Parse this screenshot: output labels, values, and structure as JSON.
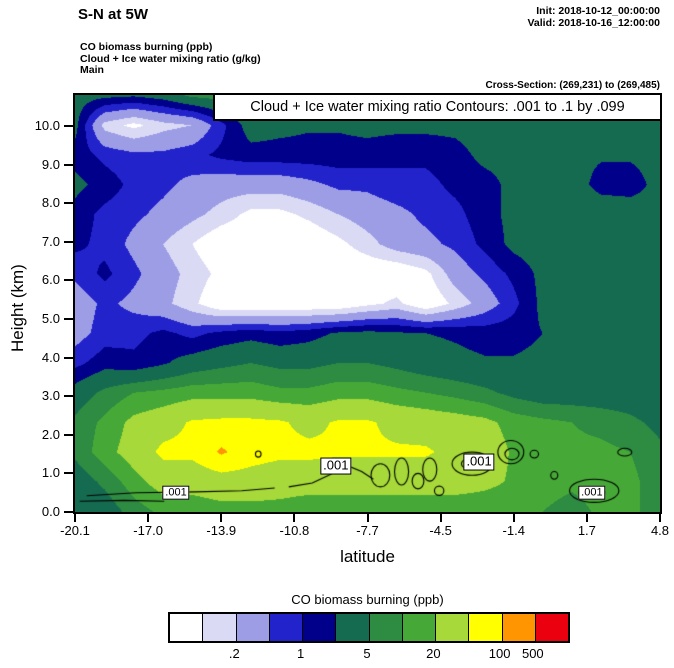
{
  "header": {
    "title": "S-N at 5W",
    "init_label": "Init: 2018-10-12_00:00:00",
    "valid_label": "Valid: 2018-10-16_12:00:00",
    "field_lines": [
      "CO biomass burning   (ppb)",
      "Cloud + Ice water mixing ratio   (g/kg)",
      "Main"
    ],
    "cross_section": "Cross-Section: (269,231) to (269,485)"
  },
  "chart_data": {
    "type": "filled_contour",
    "title": "Cloud + Ice water mixing ratio Contours: .001 to .1 by .099",
    "xlabel": "latitude",
    "ylabel": "Height (km)",
    "xlim": [
      -20.1,
      4.8
    ],
    "ylim": [
      0,
      10.8
    ],
    "x_ticks": [
      "-20.1",
      "-17.0",
      "-13.9",
      "-10.8",
      "-7.7",
      "-4.5",
      "-1.4",
      "1.7",
      "4.8"
    ],
    "y_ticks": [
      "0.0",
      "1.0",
      "2.0",
      "3.0",
      "4.0",
      "5.0",
      "6.0",
      "7.0",
      "8.0",
      "9.0",
      "10.0"
    ],
    "fill_field": {
      "name": "CO biomass burning (ppb)",
      "units": "ppb",
      "levels": [
        0.1,
        0.2,
        0.5,
        1,
        2,
        5,
        10,
        20,
        50,
        100,
        500
      ],
      "colors": [
        "#ffffff",
        "#dadaf5",
        "#9d9de6",
        "#2323cc",
        "#00008b",
        "#156b50",
        "#2e8b42",
        "#46a937",
        "#a6d939",
        "#ffff00",
        "#ff9500",
        "#eb0010"
      ],
      "lats": [
        -20.1,
        -18.9,
        -17.6,
        -16.4,
        -15.1,
        -13.9,
        -12.6,
        -11.4,
        -10.1,
        -8.9,
        -7.7,
        -6.4,
        -5.2,
        -3.9,
        -2.7,
        -1.4,
        -0.2,
        1.0,
        2.3,
        3.5,
        4.8
      ],
      "heights": [
        0,
        0.77,
        1.54,
        2.31,
        3.09,
        3.86,
        4.63,
        5.4,
        6.17,
        6.94,
        7.71,
        8.49,
        9.26,
        10.03,
        10.8
      ],
      "values": [
        [
          3,
          3,
          7,
          12,
          12,
          15,
          15,
          15,
          12,
          12,
          12,
          12,
          12,
          12,
          12,
          12,
          10,
          7,
          12,
          12,
          7
        ],
        [
          3,
          6,
          15,
          30,
          30,
          35,
          35,
          30,
          30,
          30,
          30,
          30,
          30,
          30,
          25,
          18,
          15,
          12,
          15,
          12,
          7
        ],
        [
          6,
          15,
          30,
          60,
          60,
          110,
          70,
          60,
          60,
          55,
          55,
          55,
          55,
          40,
          35,
          18,
          15,
          12,
          12,
          10,
          6
        ],
        [
          6,
          12,
          25,
          35,
          55,
          60,
          60,
          55,
          40,
          55,
          55,
          40,
          35,
          30,
          25,
          15,
          12,
          10,
          8,
          6,
          4
        ],
        [
          3,
          6,
          10,
          12,
          15,
          15,
          15,
          12,
          12,
          15,
          15,
          12,
          10,
          8,
          6,
          4,
          3,
          3,
          3,
          3,
          2.5
        ],
        [
          0.8,
          1.5,
          1.2,
          1.8,
          3,
          4,
          5,
          4,
          4,
          5,
          5,
          4,
          3,
          2.5,
          2.2,
          2.2,
          2.5,
          3,
          3,
          2.5,
          2.2
        ],
        [
          0.35,
          0.7,
          0.8,
          1.2,
          0.8,
          1.2,
          1.5,
          1.2,
          1.5,
          2.2,
          2.5,
          2.2,
          2,
          1.8,
          1.5,
          1.5,
          2,
          2.5,
          2.5,
          2.2,
          2
        ],
        [
          0.3,
          0.6,
          0.4,
          0.25,
          0.12,
          0.05,
          0.05,
          0.05,
          0.05,
          0.05,
          0.08,
          0.12,
          0.05,
          0.12,
          0.3,
          0.8,
          2.5,
          3,
          3,
          2.5,
          2.2
        ],
        [
          0.6,
          1.2,
          0.6,
          0.3,
          0.15,
          0.08,
          0.05,
          0.05,
          0.05,
          0.05,
          0.05,
          0.05,
          0.08,
          0.3,
          0.6,
          1.2,
          2.5,
          3,
          3,
          2.5,
          2.2
        ],
        [
          1.2,
          0.8,
          0.4,
          0.2,
          0.1,
          0.05,
          0.05,
          0.05,
          0.05,
          0.08,
          0.15,
          0.3,
          0.4,
          0.6,
          1.2,
          2.5,
          3,
          3.5,
          3,
          2.5,
          2.5
        ],
        [
          1.5,
          0.8,
          0.6,
          0.4,
          0.25,
          0.15,
          0.08,
          0.08,
          0.12,
          0.2,
          0.3,
          0.4,
          0.6,
          0.8,
          1.5,
          2.5,
          3,
          4,
          3.5,
          3,
          2.5
        ],
        [
          2.5,
          1.5,
          0.8,
          0.6,
          0.4,
          0.3,
          0.3,
          0.3,
          0.4,
          0.6,
          0.6,
          0.8,
          0.8,
          1.2,
          1.5,
          2.5,
          3.5,
          3,
          1.5,
          1.5,
          2.5
        ],
        [
          1.5,
          0.8,
          0.6,
          0.6,
          0.8,
          1.2,
          1.5,
          1.5,
          1.5,
          1.5,
          1.5,
          1.2,
          1.2,
          1.5,
          2.5,
          2.5,
          2.5,
          2.5,
          2.2,
          2.2,
          2.5
        ],
        [
          2.5,
          0.15,
          0.08,
          0.15,
          0.2,
          0.8,
          3,
          2.5,
          2.2,
          2.2,
          2.5,
          2.5,
          2.5,
          2.5,
          3,
          3,
          3,
          3,
          3,
          3,
          3
        ],
        [
          3,
          2.5,
          2.2,
          3,
          6,
          7,
          6,
          4,
          3,
          3,
          4,
          5,
          4,
          3,
          3,
          4,
          5,
          6,
          5,
          4,
          6
        ]
      ]
    },
    "overlay_field": {
      "name": "Cloud + Ice water mixing ratio (g/kg)",
      "units": "g/kg",
      "contour_min": ".001",
      "contour_max": ".1",
      "contour_interval": ".099",
      "line_color": "#000000",
      "labels": [
        {
          "text": ".001",
          "lat": -15.8,
          "z": 0.5,
          "size": 11
        },
        {
          "text": ".001",
          "lat": -9.0,
          "z": 1.2,
          "size": 13
        },
        {
          "text": ".001",
          "lat": -2.9,
          "z": 1.3,
          "size": 13
        },
        {
          "text": ".001",
          "lat": 1.9,
          "z": 0.5,
          "size": 11
        }
      ],
      "ellipses": [
        [
          -12.3,
          1.5,
          0.12,
          0.08
        ],
        [
          -7.1,
          0.95,
          0.4,
          0.3
        ],
        [
          -6.2,
          1.05,
          0.3,
          0.35
        ],
        [
          -5.5,
          0.8,
          0.25,
          0.2
        ],
        [
          -5.0,
          1.1,
          0.3,
          0.3
        ],
        [
          -4.6,
          0.55,
          0.2,
          0.12
        ],
        [
          -3.2,
          1.25,
          0.85,
          0.3
        ],
        [
          -3.2,
          1.25,
          0.45,
          0.15
        ],
        [
          -1.55,
          1.55,
          0.55,
          0.3
        ],
        [
          -1.5,
          1.5,
          0.3,
          0.15
        ],
        [
          -0.55,
          1.5,
          0.18,
          0.1
        ],
        [
          2.0,
          0.55,
          1.05,
          0.3
        ],
        [
          1.9,
          0.5,
          0.55,
          0.15
        ],
        [
          3.3,
          1.55,
          0.3,
          0.1
        ],
        [
          0.3,
          0.95,
          0.15,
          0.1
        ]
      ],
      "polylines": [
        [
          [
            -19.6,
            0.42
          ],
          [
            -17.5,
            0.5
          ],
          [
            -15.0,
            0.52
          ],
          [
            -13.0,
            0.55
          ],
          [
            -11.6,
            0.62
          ]
        ],
        [
          [
            -11.0,
            0.65
          ],
          [
            -10.0,
            0.75
          ],
          [
            -9.3,
            0.95
          ],
          [
            -8.5,
            1.2
          ],
          [
            -7.9,
            1.05
          ],
          [
            -7.4,
            0.85
          ]
        ],
        [
          [
            -19.9,
            0.28
          ],
          [
            -18.0,
            0.3
          ],
          [
            -16.3,
            0.28
          ]
        ]
      ]
    },
    "colorbar": {
      "title": "CO biomass burning  (ppb)",
      "tick_labels": [
        ".2",
        "1",
        "5",
        "20",
        "100",
        "500"
      ],
      "tick_boundaries": [
        2,
        4,
        6,
        8,
        10,
        11
      ]
    }
  }
}
